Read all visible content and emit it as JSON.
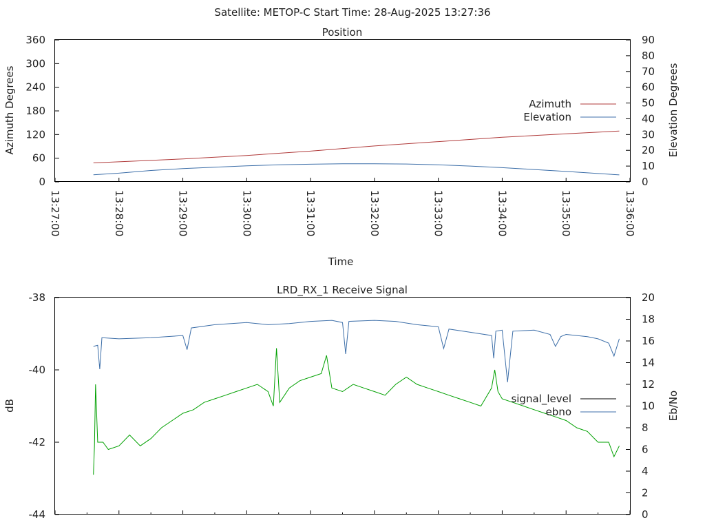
{
  "header": "Satellite: METOP-C    Start Time: 28-Aug-2025 13:27:36",
  "chart_data": [
    {
      "type": "line",
      "title": "Position",
      "xlabel": "Time",
      "ylabel": "Azimuth Degrees",
      "y2label": "Elevation Degrees",
      "xlim": [
        "13:27:00",
        "13:36:00"
      ],
      "xticks": [
        "13:27:00",
        "13:28:00",
        "13:29:00",
        "13:30:00",
        "13:31:00",
        "13:32:00",
        "13:33:00",
        "13:34:00",
        "13:35:00",
        "13:36:00"
      ],
      "ylim": [
        0,
        360
      ],
      "yticks": [
        0,
        60,
        120,
        180,
        240,
        300,
        360
      ],
      "y2lim": [
        0,
        90
      ],
      "y2ticks": [
        0,
        10,
        20,
        30,
        40,
        50,
        60,
        70,
        80,
        90
      ],
      "legend_position": "right",
      "series": [
        {
          "name": "Azimuth",
          "axis": "left",
          "color": "#b03a3a",
          "points": [
            [
              "13:27:36",
              48
            ],
            [
              "13:29:00",
              58
            ],
            [
              "13:30:00",
              67
            ],
            [
              "13:31:00",
              78
            ],
            [
              "13:32:00",
              91
            ],
            [
              "13:33:00",
              102
            ],
            [
              "13:34:00",
              113
            ],
            [
              "13:35:00",
              122
            ],
            [
              "13:35:50",
              129
            ]
          ]
        },
        {
          "name": "Elevation",
          "axis": "right",
          "color": "#3c6ea8",
          "points": [
            [
              "13:27:36",
              4.5
            ],
            [
              "13:28:00",
              5.5
            ],
            [
              "13:28:30",
              7.2
            ],
            [
              "13:29:00",
              8.4
            ],
            [
              "13:29:30",
              9.3
            ],
            [
              "13:30:00",
              10.2
            ],
            [
              "13:30:30",
              10.8
            ],
            [
              "13:31:00",
              11.2
            ],
            [
              "13:31:30",
              11.5
            ],
            [
              "13:32:00",
              11.5
            ],
            [
              "13:32:30",
              11.3
            ],
            [
              "13:33:00",
              10.8
            ],
            [
              "13:33:30",
              10.0
            ],
            [
              "13:34:00",
              9.0
            ],
            [
              "13:34:30",
              7.8
            ],
            [
              "13:35:00",
              6.6
            ],
            [
              "13:35:30",
              5.3
            ],
            [
              "13:35:50",
              4.4
            ]
          ]
        }
      ]
    },
    {
      "type": "line",
      "title": "LRD_RX_1 Receive Signal",
      "ylabel": "dB",
      "y2label": "Eb/No",
      "xlim": [
        "13:27:00",
        "13:36:00"
      ],
      "ylim": [
        -44,
        -38
      ],
      "yticks": [
        -44,
        -42,
        -40,
        -38
      ],
      "y2lim": [
        0,
        20
      ],
      "y2ticks": [
        0,
        2,
        4,
        6,
        8,
        10,
        12,
        14,
        16,
        18,
        20
      ],
      "legend_position": "right",
      "series": [
        {
          "name": "signal_level",
          "axis": "left",
          "color": "#00a000",
          "legend_color": "#000000",
          "points": [
            [
              "13:27:36",
              -42.9
            ],
            [
              "13:27:37",
              -42.1
            ],
            [
              "13:27:38",
              -40.4
            ],
            [
              "13:27:40",
              -42.0
            ],
            [
              "13:27:45",
              -42.0
            ],
            [
              "13:27:50",
              -42.2
            ],
            [
              "13:28:00",
              -42.1
            ],
            [
              "13:28:10",
              -41.8
            ],
            [
              "13:28:20",
              -42.1
            ],
            [
              "13:28:30",
              -41.9
            ],
            [
              "13:28:40",
              -41.6
            ],
            [
              "13:28:50",
              -41.4
            ],
            [
              "13:29:00",
              -41.2
            ],
            [
              "13:29:10",
              -41.1
            ],
            [
              "13:29:20",
              -40.9
            ],
            [
              "13:29:30",
              -40.8
            ],
            [
              "13:29:40",
              -40.7
            ],
            [
              "13:29:50",
              -40.6
            ],
            [
              "13:30:00",
              -40.5
            ],
            [
              "13:30:10",
              -40.4
            ],
            [
              "13:30:20",
              -40.6
            ],
            [
              "13:30:25",
              -41.0
            ],
            [
              "13:30:28",
              -39.4
            ],
            [
              "13:30:31",
              -40.9
            ],
            [
              "13:30:40",
              -40.5
            ],
            [
              "13:30:50",
              -40.3
            ],
            [
              "13:31:00",
              -40.2
            ],
            [
              "13:31:10",
              -40.1
            ],
            [
              "13:31:15",
              -39.6
            ],
            [
              "13:31:20",
              -40.5
            ],
            [
              "13:31:30",
              -40.6
            ],
            [
              "13:31:40",
              -40.4
            ],
            [
              "13:31:50",
              -40.5
            ],
            [
              "13:32:00",
              -40.6
            ],
            [
              "13:32:10",
              -40.7
            ],
            [
              "13:32:20",
              -40.4
            ],
            [
              "13:32:30",
              -40.2
            ],
            [
              "13:32:40",
              -40.4
            ],
            [
              "13:32:50",
              -40.5
            ],
            [
              "13:33:00",
              -40.6
            ],
            [
              "13:33:10",
              -40.7
            ],
            [
              "13:33:20",
              -40.8
            ],
            [
              "13:33:30",
              -40.9
            ],
            [
              "13:33:40",
              -41.0
            ],
            [
              "13:33:50",
              -40.5
            ],
            [
              "13:33:53",
              -40.0
            ],
            [
              "13:33:56",
              -40.6
            ],
            [
              "13:34:00",
              -40.8
            ],
            [
              "13:34:10",
              -40.9
            ],
            [
              "13:34:20",
              -41.0
            ],
            [
              "13:34:30",
              -41.1
            ],
            [
              "13:34:40",
              -41.2
            ],
            [
              "13:34:50",
              -41.3
            ],
            [
              "13:35:00",
              -41.4
            ],
            [
              "13:35:10",
              -41.6
            ],
            [
              "13:35:20",
              -41.7
            ],
            [
              "13:35:30",
              -42.0
            ],
            [
              "13:35:40",
              -42.0
            ],
            [
              "13:35:45",
              -42.4
            ],
            [
              "13:35:50",
              -42.1
            ]
          ]
        },
        {
          "name": "ebno",
          "axis": "right",
          "color": "#3c6ea8",
          "points": [
            [
              "13:27:36",
              15.5
            ],
            [
              "13:27:40",
              15.6
            ],
            [
              "13:27:42",
              13.4
            ],
            [
              "13:27:44",
              16.3
            ],
            [
              "13:28:00",
              16.2
            ],
            [
              "13:28:30",
              16.3
            ],
            [
              "13:29:00",
              16.5
            ],
            [
              "13:29:04",
              15.2
            ],
            [
              "13:29:08",
              17.2
            ],
            [
              "13:29:30",
              17.5
            ],
            [
              "13:30:00",
              17.7
            ],
            [
              "13:30:20",
              17.5
            ],
            [
              "13:30:40",
              17.6
            ],
            [
              "13:31:00",
              17.8
            ],
            [
              "13:31:20",
              17.9
            ],
            [
              "13:31:30",
              17.7
            ],
            [
              "13:31:33",
              14.8
            ],
            [
              "13:31:36",
              17.8
            ],
            [
              "13:32:00",
              17.9
            ],
            [
              "13:32:20",
              17.8
            ],
            [
              "13:32:40",
              17.5
            ],
            [
              "13:33:00",
              17.3
            ],
            [
              "13:33:05",
              15.3
            ],
            [
              "13:33:10",
              17.1
            ],
            [
              "13:33:30",
              16.8
            ],
            [
              "13:33:50",
              16.5
            ],
            [
              "13:33:52",
              14.4
            ],
            [
              "13:33:54",
              16.9
            ],
            [
              "13:34:00",
              17.0
            ],
            [
              "13:34:05",
              12.2
            ],
            [
              "13:34:10",
              16.9
            ],
            [
              "13:34:30",
              17.0
            ],
            [
              "13:34:45",
              16.6
            ],
            [
              "13:34:50",
              15.5
            ],
            [
              "13:34:55",
              16.4
            ],
            [
              "13:35:00",
              16.6
            ],
            [
              "13:35:20",
              16.4
            ],
            [
              "13:35:30",
              16.2
            ],
            [
              "13:35:40",
              15.8
            ],
            [
              "13:35:45",
              14.6
            ],
            [
              "13:35:50",
              16.2
            ]
          ]
        }
      ]
    }
  ]
}
